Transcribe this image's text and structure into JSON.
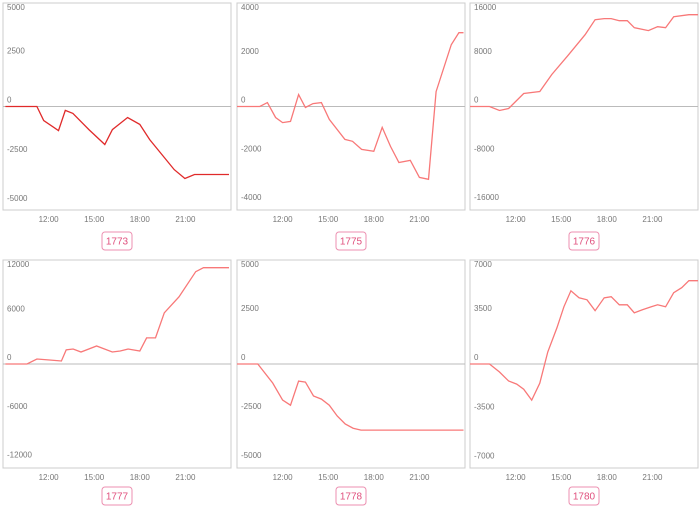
{
  "chart_data": [
    {
      "type": "line",
      "title": "1773",
      "color": "#e02a2a",
      "xlim": [
        9,
        24
      ],
      "ylim": [
        -5250,
        5250
      ],
      "xticks": [
        {
          "value": 12,
          "label": "12:00"
        },
        {
          "value": 15,
          "label": "15:00"
        },
        {
          "value": 18,
          "label": "18:00"
        },
        {
          "value": 21,
          "label": "21:00"
        }
      ],
      "yticks": [
        5000,
        2500,
        0,
        -2500,
        -5000
      ],
      "x": [
        9.16,
        11.23,
        11.68,
        12.65,
        13.1,
        13.6,
        14.65,
        15.7,
        16.2,
        17.2,
        18.0,
        18.65,
        20.26,
        20.97,
        21.6,
        23.87
      ],
      "values": [
        0,
        0,
        -710,
        -1220,
        -200,
        -350,
        -1170,
        -1930,
        -1170,
        -560,
        -910,
        -1680,
        -3200,
        -3650,
        -3450,
        -3450
      ]
    },
    {
      "type": "line",
      "title": "1775",
      "color": "#f87878",
      "xlim": [
        9,
        24
      ],
      "ylim": [
        -4250,
        4250
      ],
      "xticks": [
        {
          "value": 12,
          "label": "12:00"
        },
        {
          "value": 15,
          "label": "15:00"
        },
        {
          "value": 18,
          "label": "18:00"
        },
        {
          "value": 21,
          "label": "21:00"
        }
      ],
      "yticks": [
        4000,
        2000,
        0,
        -2000,
        -4000
      ],
      "x": [
        9.0,
        10.5,
        11.0,
        11.54,
        12.0,
        12.52,
        13.05,
        13.5,
        14.0,
        14.55,
        15.07,
        16.1,
        16.6,
        17.2,
        18.0,
        18.55,
        19.1,
        19.65,
        20.4,
        21.0,
        21.6,
        22.1,
        23.1,
        23.6,
        23.9
      ],
      "values": [
        0,
        0,
        160,
        -450,
        -660,
        -610,
        490,
        -40,
        120,
        160,
        -530,
        -1350,
        -1430,
        -1760,
        -1840,
        -860,
        -1640,
        -2300,
        -2210,
        -2910,
        -2990,
        610,
        2540,
        3030,
        3030
      ]
    },
    {
      "type": "line",
      "title": "1776",
      "color": "#f87878",
      "xlim": [
        9,
        24
      ],
      "ylim": [
        -17000,
        17000
      ],
      "xticks": [
        {
          "value": 12,
          "label": "12:00"
        },
        {
          "value": 15,
          "label": "15:00"
        },
        {
          "value": 18,
          "label": "18:00"
        },
        {
          "value": 21,
          "label": "21:00"
        }
      ],
      "yticks": [
        16000,
        8000,
        0,
        -8000,
        -16000
      ],
      "x": [
        9.0,
        10.28,
        10.94,
        11.54,
        12.53,
        13.59,
        14.38,
        15.44,
        16.57,
        17.23,
        17.83,
        18.29,
        18.82,
        19.35,
        19.81,
        20.74,
        21.34,
        21.87,
        22.4,
        23.4,
        24.0
      ],
      "values": [
        0,
        0,
        -660,
        -330,
        2130,
        2460,
        5250,
        8360,
        11800,
        14260,
        14430,
        14430,
        14100,
        14100,
        12950,
        12460,
        13110,
        12950,
        14750,
        15080,
        15080
      ]
    },
    {
      "type": "line",
      "title": "1777",
      "color": "#f87878",
      "xlim": [
        9,
        24
      ],
      "ylim": [
        -12800,
        12800
      ],
      "xticks": [
        {
          "value": 12,
          "label": "12:00"
        },
        {
          "value": 15,
          "label": "15:00"
        },
        {
          "value": 18,
          "label": "18:00"
        },
        {
          "value": 21,
          "label": "21:00"
        }
      ],
      "yticks": [
        12000,
        6000,
        0,
        -6000,
        -12000
      ],
      "x": [
        9.16,
        10.58,
        11.23,
        12.06,
        12.84,
        13.16,
        13.61,
        14.13,
        15.16,
        16.19,
        16.71,
        17.23,
        18.0,
        18.45,
        19.03,
        19.61,
        20.58,
        21.68,
        22.19,
        23.87
      ],
      "values": [
        0,
        0,
        620,
        490,
        370,
        1730,
        1850,
        1480,
        2220,
        1480,
        1600,
        1850,
        1600,
        3210,
        3210,
        6300,
        8270,
        11360,
        11850,
        11850
      ]
    },
    {
      "type": "line",
      "title": "1778",
      "color": "#f87878",
      "xlim": [
        9,
        24
      ],
      "ylim": [
        -5300,
        5300
      ],
      "xticks": [
        {
          "value": 12,
          "label": "12:00"
        },
        {
          "value": 15,
          "label": "15:00"
        },
        {
          "value": 18,
          "label": "18:00"
        },
        {
          "value": 21,
          "label": "21:00"
        }
      ],
      "yticks": [
        5000,
        2500,
        0,
        -2500,
        -5000
      ],
      "x": [
        9.0,
        10.37,
        11.35,
        12.0,
        12.52,
        13.05,
        13.5,
        14.03,
        14.55,
        15.07,
        15.59,
        16.12,
        16.64,
        17.16,
        23.9
      ],
      "values": [
        0,
        0,
        -970,
        -1840,
        -2100,
        -870,
        -920,
        -1630,
        -1790,
        -2100,
        -2650,
        -3060,
        -3270,
        -3370,
        -3370
      ]
    },
    {
      "type": "line",
      "title": "1780",
      "color": "#f87878",
      "xlim": [
        9,
        24
      ],
      "ylim": [
        -7400,
        7400
      ],
      "xticks": [
        {
          "value": 12,
          "label": "12:00"
        },
        {
          "value": 15,
          "label": "15:00"
        },
        {
          "value": 18,
          "label": "18:00"
        },
        {
          "value": 21,
          "label": "21:00"
        }
      ],
      "yticks": [
        7000,
        3500,
        0,
        -3500,
        -7000
      ],
      "x": [
        9.0,
        10.28,
        10.94,
        11.54,
        12.07,
        12.53,
        13.06,
        13.59,
        14.12,
        14.72,
        15.18,
        15.64,
        16.17,
        16.7,
        17.23,
        17.83,
        18.29,
        18.82,
        19.35,
        19.81,
        20.34,
        20.93,
        21.34,
        21.87,
        22.4,
        22.93,
        23.4,
        24.0
      ],
      "values": [
        0,
        0,
        -570,
        -1210,
        -1430,
        -1790,
        -2570,
        -1360,
        860,
        2570,
        4070,
        5210,
        4710,
        4570,
        3790,
        4710,
        4790,
        4210,
        4210,
        3640,
        3860,
        4070,
        4210,
        4070,
        5070,
        5430,
        5930,
        5930
      ]
    }
  ]
}
